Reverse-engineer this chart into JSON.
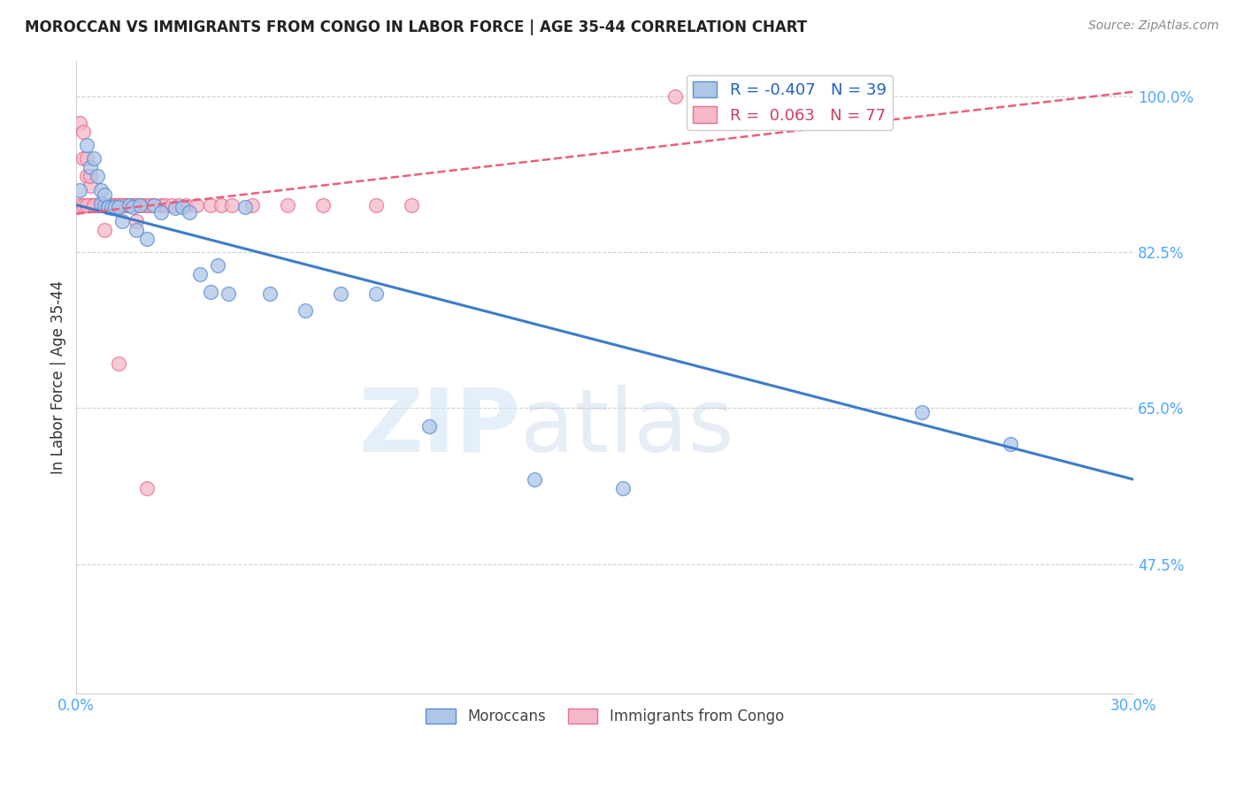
{
  "title": "MOROCCAN VS IMMIGRANTS FROM CONGO IN LABOR FORCE | AGE 35-44 CORRELATION CHART",
  "source": "Source: ZipAtlas.com",
  "xlabel": "",
  "ylabel": "In Labor Force | Age 35-44",
  "xlim": [
    0.0,
    0.3
  ],
  "ylim": [
    0.33,
    1.04
  ],
  "yticks": [
    0.475,
    0.65,
    0.825,
    1.0
  ],
  "ytick_labels": [
    "47.5%",
    "65.0%",
    "82.5%",
    "100.0%"
  ],
  "xticks": [
    0.0,
    0.05,
    0.1,
    0.15,
    0.2,
    0.25,
    0.3
  ],
  "xtick_labels": [
    "0.0%",
    "",
    "",
    "",
    "",
    "",
    "30.0%"
  ],
  "blue_R": -0.407,
  "blue_N": 39,
  "pink_R": 0.063,
  "pink_N": 77,
  "blue_color": "#aec6e8",
  "pink_color": "#f5b8c8",
  "blue_edge_color": "#5b8fd4",
  "pink_edge_color": "#e87090",
  "blue_line_color": "#3d7cc9",
  "pink_line_color": "#e8607a",
  "blue_line_x": [
    0.0,
    0.3
  ],
  "blue_line_y": [
    0.878,
    0.57
  ],
  "pink_line_x": [
    0.0,
    0.3
  ],
  "pink_line_y": [
    0.868,
    1.005
  ],
  "blue_scatter_x": [
    0.001,
    0.003,
    0.004,
    0.005,
    0.006,
    0.007,
    0.007,
    0.008,
    0.008,
    0.009,
    0.009,
    0.01,
    0.011,
    0.012,
    0.013,
    0.015,
    0.016,
    0.017,
    0.018,
    0.02,
    0.022,
    0.024,
    0.028,
    0.03,
    0.032,
    0.035,
    0.038,
    0.04,
    0.043,
    0.048,
    0.055,
    0.065,
    0.075,
    0.085,
    0.1,
    0.13,
    0.155,
    0.24,
    0.265
  ],
  "blue_scatter_y": [
    0.895,
    0.945,
    0.92,
    0.93,
    0.91,
    0.895,
    0.88,
    0.878,
    0.89,
    0.876,
    0.876,
    0.875,
    0.876,
    0.876,
    0.86,
    0.878,
    0.876,
    0.85,
    0.878,
    0.84,
    0.878,
    0.87,
    0.875,
    0.876,
    0.87,
    0.8,
    0.78,
    0.81,
    0.778,
    0.876,
    0.778,
    0.76,
    0.778,
    0.778,
    0.63,
    0.57,
    0.56,
    0.645,
    0.61
  ],
  "pink_scatter_x": [
    0.001,
    0.002,
    0.002,
    0.003,
    0.003,
    0.003,
    0.004,
    0.004,
    0.004,
    0.005,
    0.005,
    0.005,
    0.005,
    0.006,
    0.006,
    0.006,
    0.006,
    0.007,
    0.007,
    0.007,
    0.007,
    0.007,
    0.008,
    0.008,
    0.008,
    0.008,
    0.008,
    0.009,
    0.009,
    0.009,
    0.009,
    0.01,
    0.01,
    0.01,
    0.01,
    0.011,
    0.011,
    0.011,
    0.012,
    0.012,
    0.012,
    0.013,
    0.013,
    0.014,
    0.014,
    0.015,
    0.015,
    0.016,
    0.017,
    0.017,
    0.018,
    0.019,
    0.02,
    0.021,
    0.022,
    0.024,
    0.025,
    0.027,
    0.029,
    0.031,
    0.034,
    0.038,
    0.041,
    0.044,
    0.05,
    0.06,
    0.07,
    0.085,
    0.095,
    0.17,
    0.001,
    0.002,
    0.003,
    0.005,
    0.008,
    0.012,
    0.02
  ],
  "pink_scatter_y": [
    0.97,
    0.96,
    0.93,
    0.93,
    0.91,
    0.878,
    0.9,
    0.91,
    0.878,
    0.878,
    0.878,
    0.878,
    0.878,
    0.878,
    0.878,
    0.878,
    0.878,
    0.878,
    0.878,
    0.878,
    0.878,
    0.878,
    0.878,
    0.878,
    0.878,
    0.878,
    0.878,
    0.878,
    0.878,
    0.878,
    0.878,
    0.878,
    0.878,
    0.878,
    0.878,
    0.878,
    0.878,
    0.878,
    0.878,
    0.878,
    0.878,
    0.878,
    0.878,
    0.878,
    0.878,
    0.878,
    0.878,
    0.878,
    0.86,
    0.878,
    0.878,
    0.878,
    0.878,
    0.878,
    0.878,
    0.878,
    0.878,
    0.878,
    0.878,
    0.878,
    0.878,
    0.878,
    0.878,
    0.878,
    0.878,
    0.878,
    0.878,
    0.878,
    0.878,
    1.0,
    0.878,
    0.878,
    0.878,
    0.878,
    0.85,
    0.7,
    0.56
  ]
}
